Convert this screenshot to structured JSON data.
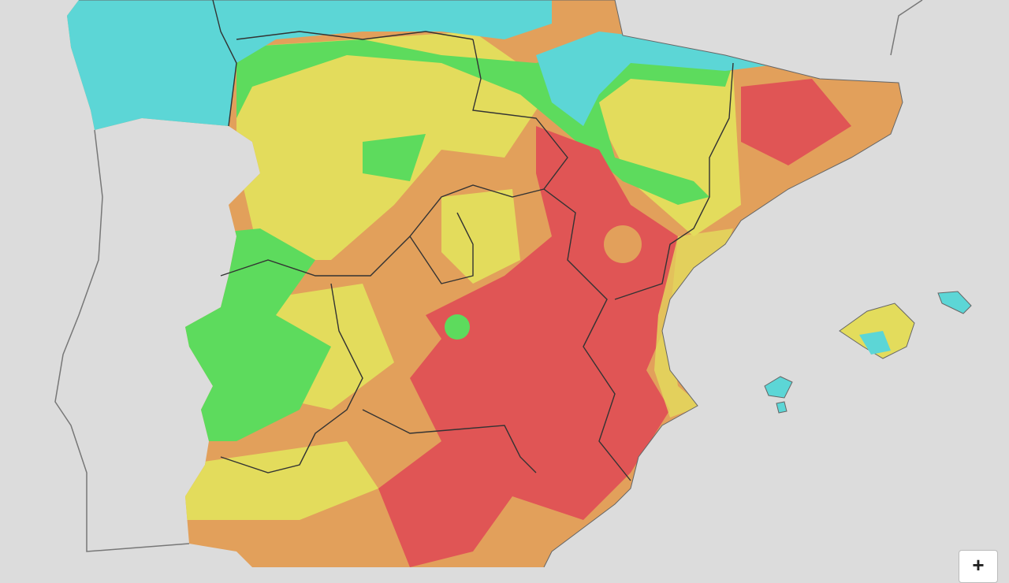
{
  "controls": {
    "zoom_in": "+"
  }
}
